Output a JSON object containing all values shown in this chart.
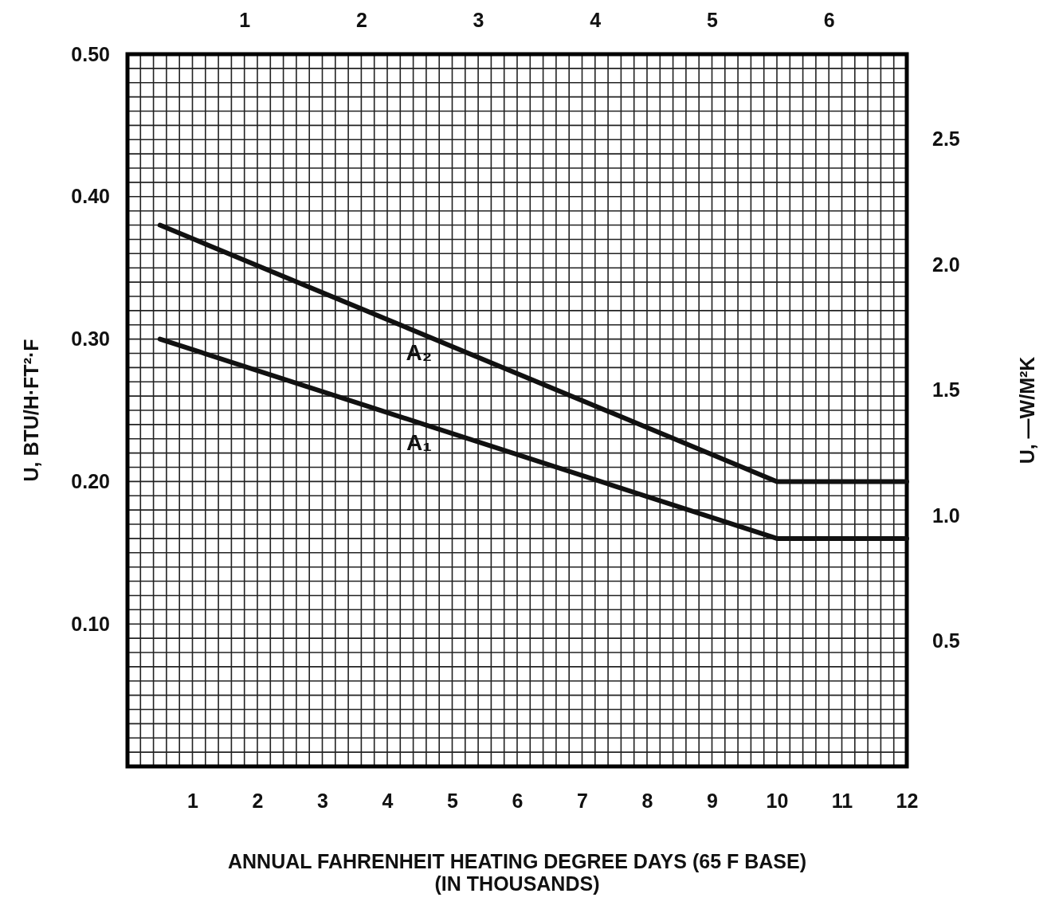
{
  "chart_data": {
    "type": "line",
    "xlabel": "ANNUAL FAHRENHEIT HEATING DEGREE DAYS (65 F BASE)\n(IN THOUSANDS)",
    "ylabel": "U, BTU/H·FT²·F",
    "y2label": "U, —W/M²K",
    "xlim": [
      0,
      12
    ],
    "xticks": [
      1,
      2,
      3,
      4,
      5,
      6,
      7,
      8,
      9,
      10,
      11,
      12
    ],
    "x2lim": [
      0,
      6.667
    ],
    "x2ticks": [
      1,
      2,
      3,
      4,
      5,
      6
    ],
    "ylim": [
      0,
      0.5
    ],
    "yticks": [
      {
        "value": 0.1,
        "label": "0.10"
      },
      {
        "value": 0.2,
        "label": "0.20"
      },
      {
        "value": 0.3,
        "label": "0.30"
      },
      {
        "value": 0.4,
        "label": "0.40"
      },
      {
        "value": 0.5,
        "label": "0.50"
      }
    ],
    "y2lim": [
      0,
      2.839
    ],
    "y2ticks": [
      {
        "value": 0.5,
        "label": "0.5"
      },
      {
        "value": 1,
        "label": "1.0"
      },
      {
        "value": 1.5,
        "label": "1.5"
      },
      {
        "value": 2,
        "label": "2.0"
      },
      {
        "value": 2.5,
        "label": "2.5"
      }
    ],
    "grid": true,
    "marker": "none",
    "line_style": "solid",
    "series": [
      {
        "name": "A₂",
        "color": "#111111",
        "x": [
          0.5,
          10,
          12
        ],
        "values": [
          0.38,
          0.2,
          0.2
        ]
      },
      {
        "name": "A₁",
        "color": "#111111",
        "x": [
          0.5,
          10,
          12
        ],
        "values": [
          0.3,
          0.16,
          0.16
        ]
      }
    ]
  }
}
